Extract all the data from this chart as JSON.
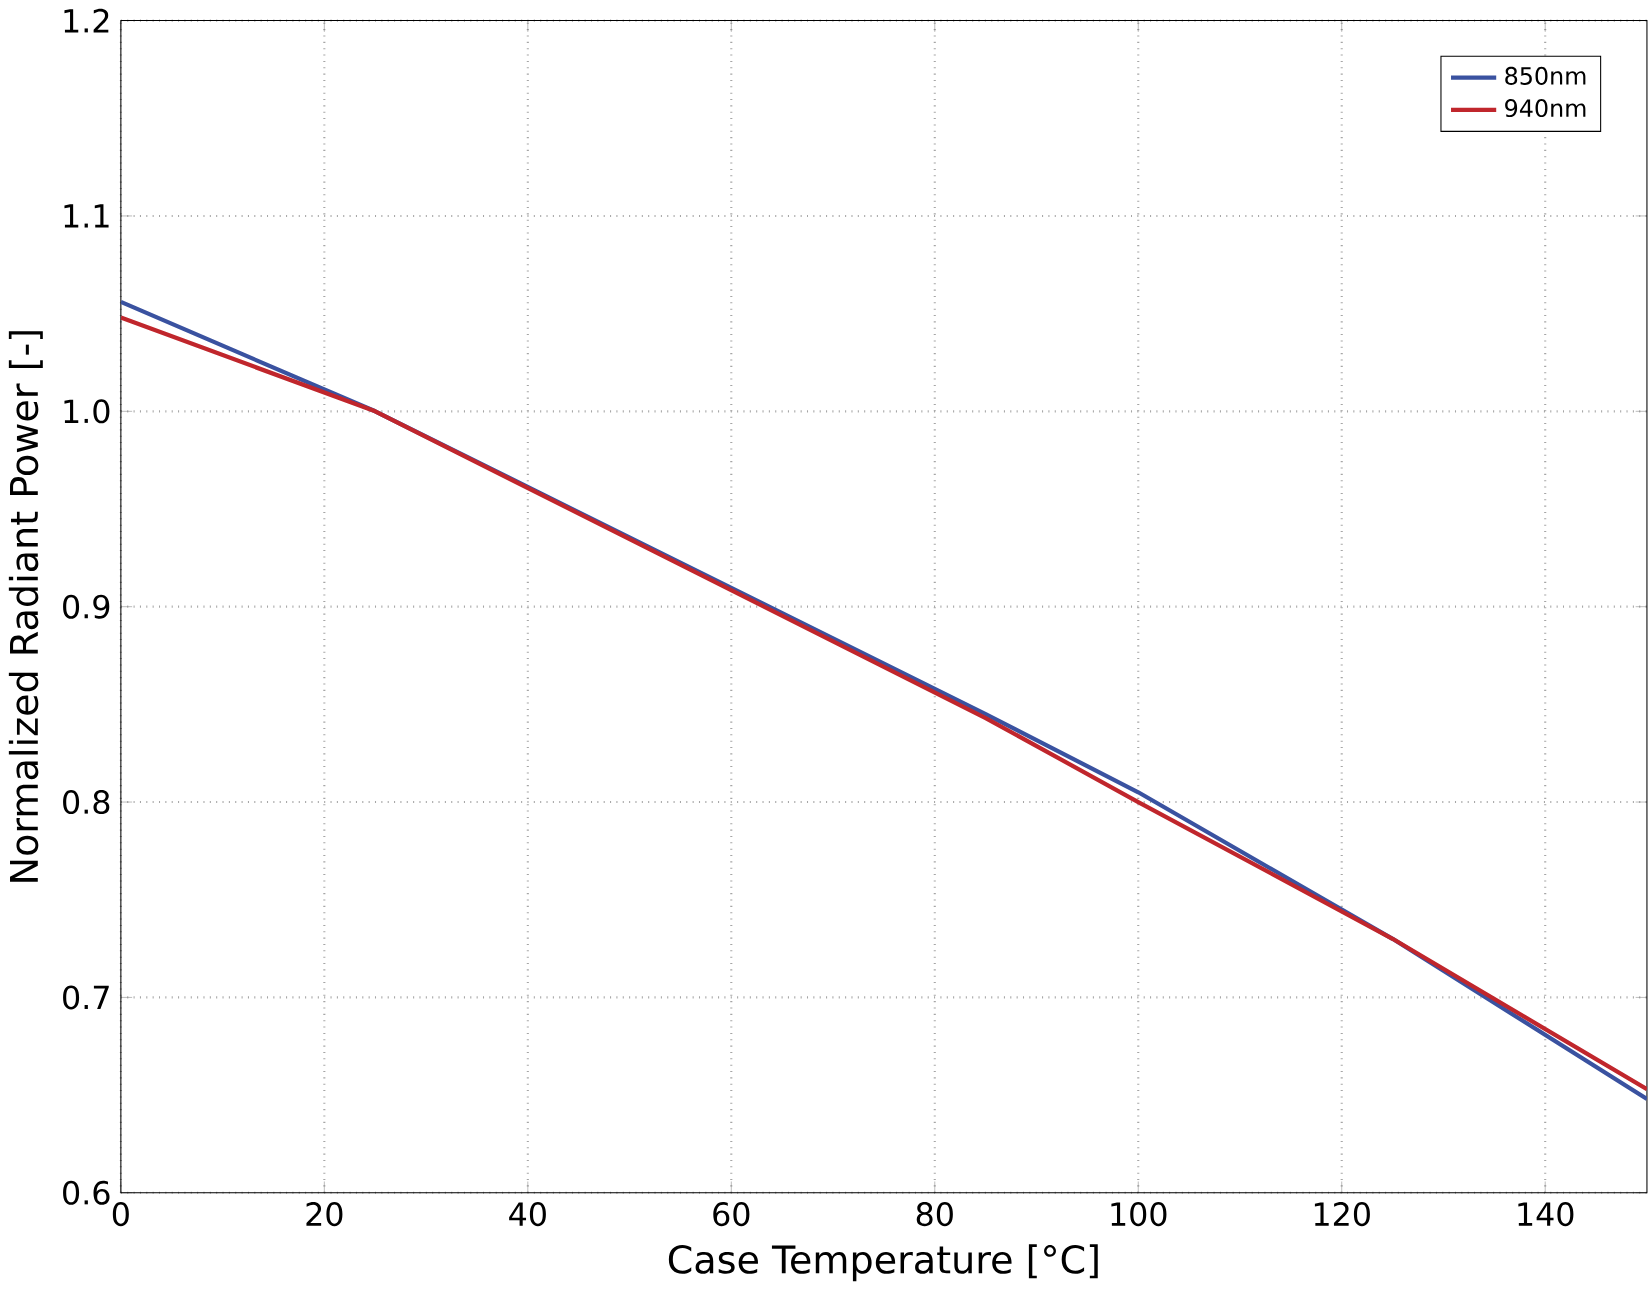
{
  "chart_data": {
    "type": "line",
    "xlabel": "Case Temperature [°C]",
    "ylabel": "Normalized Radiant Power [-]",
    "x": [
      0,
      25,
      85,
      100,
      125,
      150
    ],
    "series": [
      {
        "name": "850nm",
        "color": "#3a52a0",
        "values": [
          1.056,
          1.0,
          0.845,
          0.805,
          0.73,
          0.648
        ]
      },
      {
        "name": "940nm",
        "color": "#c0262c",
        "values": [
          1.048,
          1.0,
          0.843,
          0.8,
          0.73,
          0.653
        ]
      }
    ],
    "xlim": [
      0,
      150
    ],
    "ylim": [
      0.6,
      1.2
    ],
    "xticks": [
      0,
      20,
      40,
      60,
      80,
      100,
      120,
      140
    ],
    "yticks": [
      0.6,
      0.7,
      0.8,
      0.9,
      {
        "value": 1,
        "label": "1.0"
      },
      1.1,
      1.2
    ],
    "grid": true,
    "legend": "top right",
    "marker": "none",
    "line_style": "solid"
  }
}
